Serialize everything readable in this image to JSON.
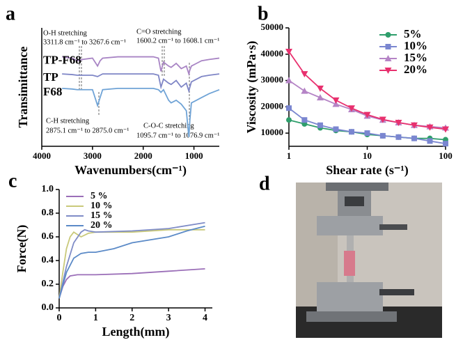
{
  "chart_data": [
    {
      "type": "line",
      "panel": "a",
      "x_label": "Wavenumbers(cm⁻¹)",
      "y_label": "Transimittance",
      "xlim": [
        4000,
        500
      ],
      "xticks": [
        4000,
        3000,
        2000,
        1000
      ],
      "ylim": [
        1.5,
        10.5
      ],
      "labels_inline": true,
      "x": [
        3600,
        3400,
        3300,
        3200,
        3000,
        2900,
        2850,
        2800,
        2500,
        2000,
        1800,
        1700,
        1650,
        1600,
        1500,
        1450,
        1350,
        1250,
        1150,
        1100,
        1080,
        1050,
        950,
        850,
        700,
        500
      ],
      "series": [
        {
          "name": "TP-F68",
          "color": "#a884c4",
          "values": [
            8.3,
            8.2,
            8.0,
            8.1,
            8.2,
            7.6,
            8.0,
            8.2,
            8.3,
            8.3,
            8.3,
            8.2,
            7.2,
            7.9,
            7.6,
            7.5,
            7.8,
            7.4,
            7.6,
            7.0,
            7.3,
            7.6,
            7.8,
            8.0,
            8.1,
            8.2
          ]
        },
        {
          "name": "TP",
          "color": "#7f86c6",
          "values": [
            7.0,
            6.95,
            6.9,
            6.9,
            6.9,
            6.8,
            6.9,
            7.0,
            7.0,
            7.0,
            7.0,
            6.9,
            6.0,
            6.6,
            6.3,
            6.2,
            6.5,
            6.0,
            6.3,
            5.7,
            6.0,
            6.4,
            6.6,
            6.8,
            6.9,
            7.0
          ]
        },
        {
          "name": "F68",
          "color": "#6fa3d6",
          "values": [
            5.9,
            5.85,
            5.8,
            5.8,
            5.8,
            4.6,
            5.2,
            5.8,
            5.9,
            5.9,
            5.9,
            5.8,
            5.6,
            5.8,
            5.0,
            4.8,
            5.0,
            4.7,
            4.2,
            2.2,
            3.5,
            4.8,
            5.0,
            5.2,
            5.5,
            5.8
          ]
        }
      ],
      "annotations": [
        "O-H stretching",
        "3311.8 cm⁻¹ to 3267.6 cm⁻¹",
        "C=O stretching",
        "1600.2 cm⁻¹ to 1608.1 cm⁻¹",
        "C-H stretching",
        "2875.1 cm⁻¹ to 2875.0 cm⁻¹",
        "C-O-C stretching",
        "1095.7 cm⁻¹ to 1076.9 cm⁻¹"
      ]
    },
    {
      "type": "line",
      "panel": "b",
      "x_label": "Shear rate (s⁻¹)",
      "y_label": "Viscosity (mPa·s)",
      "xscale": "log",
      "xlim": [
        1,
        100
      ],
      "xticks": [
        1,
        10,
        100
      ],
      "ylim": [
        5000,
        50000
      ],
      "yticks": [
        10000,
        20000,
        30000,
        40000,
        50000
      ],
      "legend": "upper right",
      "x": [
        1,
        1.58,
        2.51,
        3.98,
        6.31,
        10,
        15.8,
        25.1,
        39.8,
        63.1,
        100
      ],
      "series": [
        {
          "name": "5%",
          "color": "#2e9e6b",
          "marker": "circle",
          "values": [
            15000,
            13500,
            12000,
            11000,
            10500,
            9500,
            9000,
            8500,
            8000,
            8000,
            7500
          ]
        },
        {
          "name": "10%",
          "color": "#7a86d0",
          "marker": "square",
          "values": [
            19500,
            15000,
            13000,
            11500,
            10500,
            10000,
            9000,
            8500,
            8000,
            7000,
            6000
          ]
        },
        {
          "name": "15%",
          "color": "#b584c6",
          "marker": "triangle",
          "values": [
            30000,
            26000,
            23500,
            21000,
            19000,
            16500,
            15000,
            14000,
            13000,
            12500,
            12000
          ]
        },
        {
          "name": "20%",
          "color": "#e8306e",
          "marker": "triangle-down",
          "values": [
            41000,
            32500,
            27000,
            22500,
            19500,
            17000,
            15200,
            14000,
            13000,
            12200,
            11500
          ]
        }
      ]
    },
    {
      "type": "line",
      "panel": "c",
      "x_label": "Length(mm)",
      "y_label": "Force(N)",
      "xlim": [
        0,
        4.2
      ],
      "xticks": [
        0,
        1,
        2,
        3,
        4
      ],
      "ylim": [
        0,
        1
      ],
      "yticks": [
        {
          "value": 0,
          "label": "0.0"
        },
        0.2,
        0.4,
        0.6,
        0.8,
        {
          "value": 1,
          "label": "1.0"
        }
      ],
      "legend": "upper left",
      "series": [
        {
          "name": "5 %",
          "color": "#9b6fb8",
          "x": [
            0,
            0.1,
            0.2,
            0.3,
            0.5,
            1,
            2,
            3,
            4
          ],
          "values": [
            0.08,
            0.18,
            0.24,
            0.27,
            0.28,
            0.28,
            0.29,
            0.31,
            0.33
          ]
        },
        {
          "name": "10 %",
          "color": "#c9c97a",
          "x": [
            0,
            0.1,
            0.2,
            0.3,
            0.4,
            0.5,
            0.6,
            0.8,
            1,
            2,
            3,
            4
          ],
          "values": [
            0.08,
            0.3,
            0.5,
            0.6,
            0.64,
            0.62,
            0.6,
            0.63,
            0.64,
            0.64,
            0.66,
            0.66
          ]
        },
        {
          "name": "15 %",
          "color": "#7f8cc7",
          "x": [
            0,
            0.2,
            0.4,
            0.6,
            0.7,
            0.8,
            1,
            2,
            3,
            4
          ],
          "values": [
            0.08,
            0.35,
            0.55,
            0.64,
            0.66,
            0.65,
            0.64,
            0.65,
            0.67,
            0.72
          ]
        },
        {
          "name": "20 %",
          "color": "#5b8ac7",
          "x": [
            0,
            0.2,
            0.4,
            0.6,
            0.8,
            1,
            1.5,
            2,
            3,
            3.5,
            4
          ],
          "values": [
            0.08,
            0.3,
            0.42,
            0.46,
            0.47,
            0.47,
            0.5,
            0.55,
            0.6,
            0.65,
            0.69
          ]
        }
      ]
    }
  ],
  "photo": {
    "panel": "d"
  }
}
